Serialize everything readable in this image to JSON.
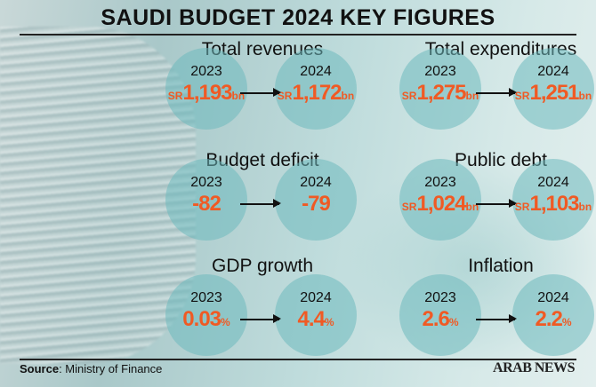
{
  "title": "SAUDI BUDGET 2024 KEY FIGURES",
  "accent_color": "#f05a24",
  "sections": [
    {
      "label": "Total revenues",
      "from": {
        "year": "2023",
        "prefix": "SR",
        "value": "1,193",
        "suffix": "bn"
      },
      "to": {
        "year": "2024",
        "prefix": "SR",
        "value": "1,172",
        "suffix": "bn"
      }
    },
    {
      "label": "Total expenditures",
      "from": {
        "year": "2023",
        "prefix": "SR",
        "value": "1,275",
        "suffix": "bn"
      },
      "to": {
        "year": "2024",
        "prefix": "SR",
        "value": "1,251",
        "suffix": "bn"
      }
    },
    {
      "label": "Budget deficit",
      "from": {
        "year": "2023",
        "prefix": "",
        "value": "-82",
        "suffix": ""
      },
      "to": {
        "year": "2024",
        "prefix": "",
        "value": "-79",
        "suffix": ""
      }
    },
    {
      "label": "Public debt",
      "from": {
        "year": "2023",
        "prefix": "SR",
        "value": "1,024",
        "suffix": "bn"
      },
      "to": {
        "year": "2024",
        "prefix": "SR",
        "value": "1,103",
        "suffix": "bn"
      }
    },
    {
      "label": "GDP growth",
      "from": {
        "year": "2023",
        "prefix": "",
        "value": "0.03",
        "suffix": "%"
      },
      "to": {
        "year": "2024",
        "prefix": "",
        "value": "4.4",
        "suffix": "%"
      }
    },
    {
      "label": "Inflation",
      "from": {
        "year": "2023",
        "prefix": "",
        "value": "2.6",
        "suffix": "%"
      },
      "to": {
        "year": "2024",
        "prefix": "",
        "value": "2.2",
        "suffix": "%"
      }
    }
  ],
  "footer": {
    "source_label": "Source",
    "source_text": ": Ministry of Finance",
    "logo": "ARAB NEWS"
  }
}
